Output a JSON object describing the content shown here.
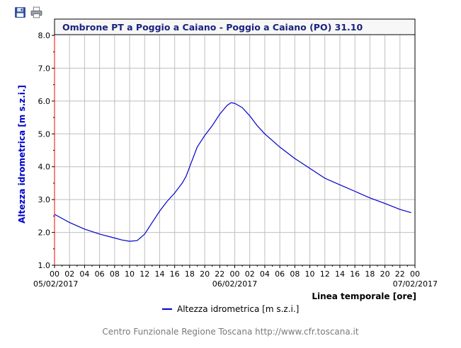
{
  "toolbar": {
    "save_icon": "floppy-disk-icon",
    "print_icon": "printer-icon"
  },
  "footer_text": "Centro Funzionale Regione Toscana http://www.cfr.toscana.it",
  "colors": {
    "axis_label": "#0000cc",
    "series_line": "#0000cc",
    "title_text": "#1a237e",
    "title_bg": "#f7f7f7",
    "grid": "#bfbfbf",
    "vertical_axis": "#ff0000"
  },
  "chart_data": {
    "type": "line",
    "title": "Ombrone PT a Poggio a Caiano - Poggio a Caiano (PO) 31.10",
    "xlabel": "Linea temporale [ore]",
    "ylabel": "Altezza idrometrica [m s.z.i.]",
    "ylim": [
      1.0,
      8.0
    ],
    "yticks": [
      "1.0",
      "2.0",
      "3.0",
      "4.0",
      "5.0",
      "6.0",
      "7.0",
      "8.0"
    ],
    "xlim": [
      0,
      48
    ],
    "xticks": [
      "00",
      "02",
      "04",
      "06",
      "08",
      "10",
      "12",
      "14",
      "16",
      "18",
      "20",
      "22",
      "00",
      "02",
      "04",
      "06",
      "08",
      "10",
      "12",
      "14",
      "16",
      "18",
      "20",
      "22",
      "00"
    ],
    "date_labels": [
      {
        "label": "05/02/2017",
        "hour": 0
      },
      {
        "label": "06/02/2017",
        "hour": 24
      },
      {
        "label": "07/02/2017",
        "hour": 48
      }
    ],
    "grid": true,
    "legend_position": "bottom-center",
    "series": [
      {
        "name": "Altezza idrometrica [m s.z.i.]",
        "x": [
          0,
          2,
          4,
          6,
          8,
          9,
          10,
          11,
          12,
          13,
          14,
          15,
          16,
          17,
          17.5,
          18,
          19,
          20,
          21,
          22,
          23,
          23.5,
          24,
          25,
          26,
          27,
          28,
          29,
          30,
          32,
          34,
          36,
          38,
          40,
          42,
          44,
          46,
          47.5
        ],
        "y": [
          2.55,
          2.3,
          2.1,
          1.95,
          1.83,
          1.77,
          1.73,
          1.75,
          1.95,
          2.3,
          2.65,
          2.95,
          3.2,
          3.5,
          3.7,
          4.0,
          4.6,
          4.95,
          5.25,
          5.6,
          5.87,
          5.95,
          5.93,
          5.8,
          5.55,
          5.25,
          5.0,
          4.8,
          4.6,
          4.25,
          3.95,
          3.65,
          3.45,
          3.25,
          3.05,
          2.88,
          2.7,
          2.6
        ]
      }
    ]
  }
}
